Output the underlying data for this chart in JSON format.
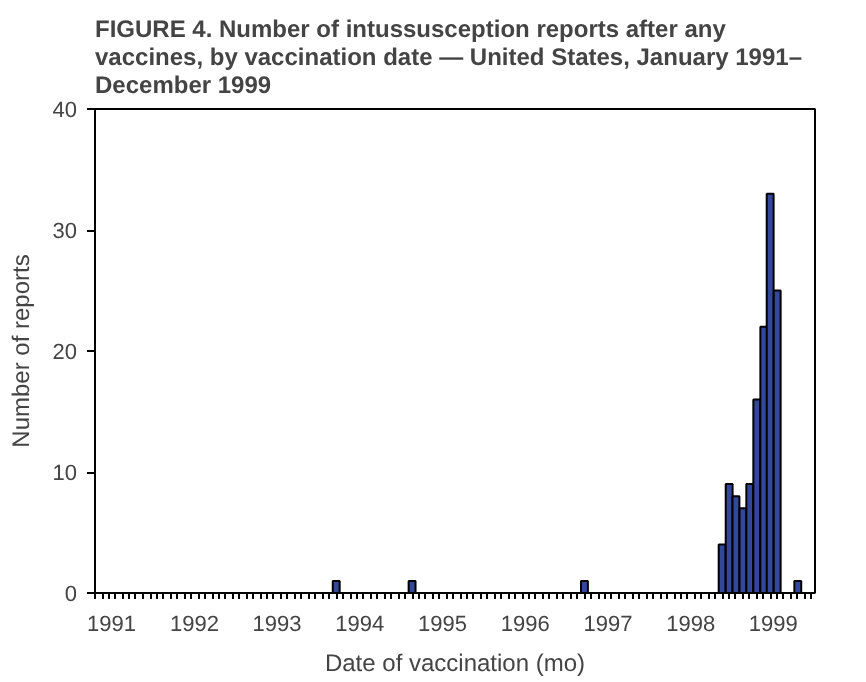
{
  "chart_data": {
    "type": "bar",
    "title": "FIGURE 4. Number of intussusception reports after any vaccines, by vaccination date — United States, January 1991–December 1999",
    "xlabel": "Date of vaccination (mo)",
    "ylabel": "Number of reports",
    "x": [
      "1993-12",
      "1994-11",
      "1996-12",
      "1998-08",
      "1998-09",
      "1998-10",
      "1998-11",
      "1998-12",
      "1999-01",
      "1999-02",
      "1999-03",
      "1999-04",
      "1999-07"
    ],
    "values": [
      1,
      1,
      1,
      4,
      9,
      8,
      7,
      9,
      16,
      22,
      33,
      25,
      1
    ],
    "color": "#34489a",
    "xlim": [
      "1991-01",
      "1999-09-15"
    ],
    "xticks": [
      {
        "value": "1991-03-15",
        "label": "1991"
      },
      {
        "value": "1992-03-15",
        "label": "1992"
      },
      {
        "value": "1993-03-15",
        "label": "1993"
      },
      {
        "value": "1994-03-15",
        "label": "1994"
      },
      {
        "value": "1995-03-15",
        "label": "1995"
      },
      {
        "value": "1996-03-15",
        "label": "1996"
      },
      {
        "value": "1997-03-15",
        "label": "1997"
      },
      {
        "value": "1998-03-15",
        "label": "1998"
      },
      {
        "value": "1999-03-15",
        "label": "1999"
      }
    ],
    "ylim": [
      0,
      40
    ],
    "yticks": [
      0,
      10,
      20,
      30,
      40
    ],
    "grid": false
  }
}
